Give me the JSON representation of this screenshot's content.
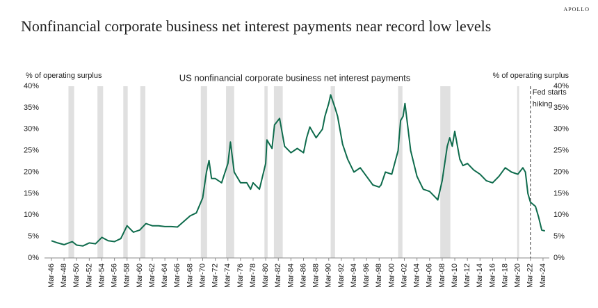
{
  "brand": "APOLLO",
  "chart_data": {
    "type": "line",
    "title": "Nonfinancial corporate business net interest payments near record low levels",
    "subtitle": "US nonfinancial corporate business net interest payments",
    "y_label": "% of operating surplus",
    "y2_label": "% of operating surplus",
    "annotation": {
      "x": 2022.2,
      "lines": [
        "Fed starts",
        "hiking"
      ]
    },
    "recessions": [
      [
        1948.9,
        1949.8
      ],
      [
        1953.5,
        1954.4
      ],
      [
        1957.6,
        1958.3
      ],
      [
        1960.3,
        1961.1
      ],
      [
        1969.9,
        1970.9
      ],
      [
        1973.9,
        1975.2
      ],
      [
        1980.0,
        1980.5
      ],
      [
        1981.5,
        1982.9
      ],
      [
        1990.5,
        1991.2
      ],
      [
        2001.2,
        2001.9
      ],
      [
        2007.9,
        2009.5
      ],
      [
        2020.1,
        2020.4
      ]
    ],
    "recession_color": "#e0e0e0",
    "series": [
      {
        "name": "US nonfinancial corporate business net interest payments",
        "color": "#0e6b4c",
        "x": [
          1946.2,
          1947.2,
          1948.2,
          1949.5,
          1950.2,
          1951.2,
          1952.2,
          1953.2,
          1954.2,
          1955.2,
          1956.2,
          1957.2,
          1958.2,
          1959.2,
          1960.2,
          1961.2,
          1962.2,
          1963.2,
          1964.2,
          1965.2,
          1966.2,
          1967.2,
          1968.2,
          1969.2,
          1970.2,
          1970.8,
          1971.2,
          1971.6,
          1972.2,
          1973.2,
          1974.2,
          1974.6,
          1975.2,
          1976.2,
          1977.2,
          1977.8,
          1978.2,
          1979.2,
          1980.2,
          1980.4,
          1981.2,
          1981.6,
          1982.4,
          1983.2,
          1984.2,
          1985.2,
          1986.2,
          1986.7,
          1987.2,
          1988.2,
          1989.2,
          1989.6,
          1990.2,
          1990.5,
          1991.2,
          1991.6,
          1992.4,
          1993.2,
          1994.2,
          1995.2,
          1996.2,
          1997.2,
          1998.2,
          1998.5,
          1999.2,
          2000.2,
          2001.2,
          2001.6,
          2002.0,
          2002.3,
          2003.2,
          2004.2,
          2005.2,
          2006.2,
          2007.2,
          2007.5,
          2008.2,
          2009.0,
          2009.4,
          2009.8,
          2010.2,
          2011.0,
          2011.5,
          2012.2,
          2013.2,
          2014.2,
          2015.2,
          2016.2,
          2017.2,
          2018.2,
          2019.2,
          2020.2,
          2021.0,
          2021.4,
          2021.8,
          2022.2,
          2023.0,
          2023.5,
          2024.0,
          2024.5
        ],
        "values": [
          4.0,
          3.5,
          3.1,
          3.8,
          3.0,
          2.8,
          3.5,
          3.3,
          4.8,
          4.0,
          3.8,
          4.5,
          7.5,
          6.0,
          6.5,
          8.0,
          7.5,
          7.5,
          7.3,
          7.3,
          7.2,
          8.5,
          9.8,
          10.5,
          14,
          20,
          22.7,
          18.5,
          18.5,
          17.5,
          22,
          27,
          20,
          17.5,
          17.5,
          16,
          17.5,
          16,
          22,
          27.5,
          25.5,
          31,
          32.5,
          26,
          24.5,
          25.5,
          24.5,
          28,
          30.5,
          28,
          30,
          33,
          36,
          38,
          35,
          33,
          26.5,
          23,
          20,
          21,
          19,
          17,
          16.5,
          17,
          20,
          19.5,
          25,
          32,
          33,
          36,
          25,
          19,
          16,
          15.5,
          14,
          13.5,
          18,
          26,
          28,
          26,
          29.5,
          23,
          21.5,
          22,
          20.5,
          19.5,
          18,
          17.5,
          19,
          21,
          20,
          19.5,
          21,
          20,
          15,
          13,
          12,
          9.5,
          6.5,
          6.3
        ]
      }
    ],
    "xlim": [
      1945.1,
      2025.2
    ],
    "xticks": [
      {
        "value": 1946.2,
        "label": "Mar-46"
      },
      {
        "value": 1948.2,
        "label": "Mar-48"
      },
      {
        "value": 1950.2,
        "label": "Mar-50"
      },
      {
        "value": 1952.2,
        "label": "Mar-52"
      },
      {
        "value": 1954.2,
        "label": "Mar-54"
      },
      {
        "value": 1956.2,
        "label": "Mar-56"
      },
      {
        "value": 1958.2,
        "label": "Mar-58"
      },
      {
        "value": 1960.2,
        "label": "Mar-60"
      },
      {
        "value": 1962.2,
        "label": "Mar-62"
      },
      {
        "value": 1964.2,
        "label": "Mar-64"
      },
      {
        "value": 1966.2,
        "label": "Mar-66"
      },
      {
        "value": 1968.2,
        "label": "Mar-68"
      },
      {
        "value": 1970.2,
        "label": "Mar-70"
      },
      {
        "value": 1972.2,
        "label": "Mar-72"
      },
      {
        "value": 1974.2,
        "label": "Mar-74"
      },
      {
        "value": 1976.2,
        "label": "Mar-76"
      },
      {
        "value": 1978.2,
        "label": "Mar-78"
      },
      {
        "value": 1980.2,
        "label": "Mar-80"
      },
      {
        "value": 1982.2,
        "label": "Mar-82"
      },
      {
        "value": 1984.2,
        "label": "Mar-84"
      },
      {
        "value": 1986.2,
        "label": "Mar-86"
      },
      {
        "value": 1988.2,
        "label": "Mar-88"
      },
      {
        "value": 1990.2,
        "label": "Mar-90"
      },
      {
        "value": 1992.2,
        "label": "Mar-92"
      },
      {
        "value": 1994.2,
        "label": "Mar-94"
      },
      {
        "value": 1996.2,
        "label": "Mar-96"
      },
      {
        "value": 1998.2,
        "label": "Mar-98"
      },
      {
        "value": 2000.2,
        "label": "Mar-00"
      },
      {
        "value": 2002.2,
        "label": "Mar-02"
      },
      {
        "value": 2004.2,
        "label": "Mar-04"
      },
      {
        "value": 2006.2,
        "label": "Mar-06"
      },
      {
        "value": 2008.2,
        "label": "Mar-08"
      },
      {
        "value": 2010.2,
        "label": "Mar-10"
      },
      {
        "value": 2012.2,
        "label": "Mar-12"
      },
      {
        "value": 2014.2,
        "label": "Mar-14"
      },
      {
        "value": 2016.2,
        "label": "Mar-16"
      },
      {
        "value": 2018.2,
        "label": "Mar-18"
      },
      {
        "value": 2020.2,
        "label": "Mar-20"
      },
      {
        "value": 2022.2,
        "label": "Mar-22"
      },
      {
        "value": 2024.2,
        "label": "Mar-24"
      }
    ],
    "ylim": [
      0,
      40
    ],
    "yticks": [
      {
        "value": 0,
        "label": "0%"
      },
      {
        "value": 5,
        "label": "5%"
      },
      {
        "value": 10,
        "label": "10%"
      },
      {
        "value": 15,
        "label": "15%"
      },
      {
        "value": 20,
        "label": "20%"
      },
      {
        "value": 25,
        "label": "25%"
      },
      {
        "value": 30,
        "label": "30%"
      },
      {
        "value": 35,
        "label": "35%"
      },
      {
        "value": 40,
        "label": "40%"
      }
    ],
    "y2lim": [
      0,
      40
    ],
    "y2ticks": [
      {
        "value": 0,
        "label": "0%"
      },
      {
        "value": 5,
        "label": "5%"
      },
      {
        "value": 10,
        "label": "10%"
      },
      {
        "value": 15,
        "label": "15%"
      },
      {
        "value": 20,
        "label": "20%"
      },
      {
        "value": 25,
        "label": "25%"
      },
      {
        "value": 30,
        "label": "30%"
      },
      {
        "value": 35,
        "label": "35%"
      },
      {
        "value": 40,
        "label": "40%"
      }
    ],
    "grid": false
  }
}
